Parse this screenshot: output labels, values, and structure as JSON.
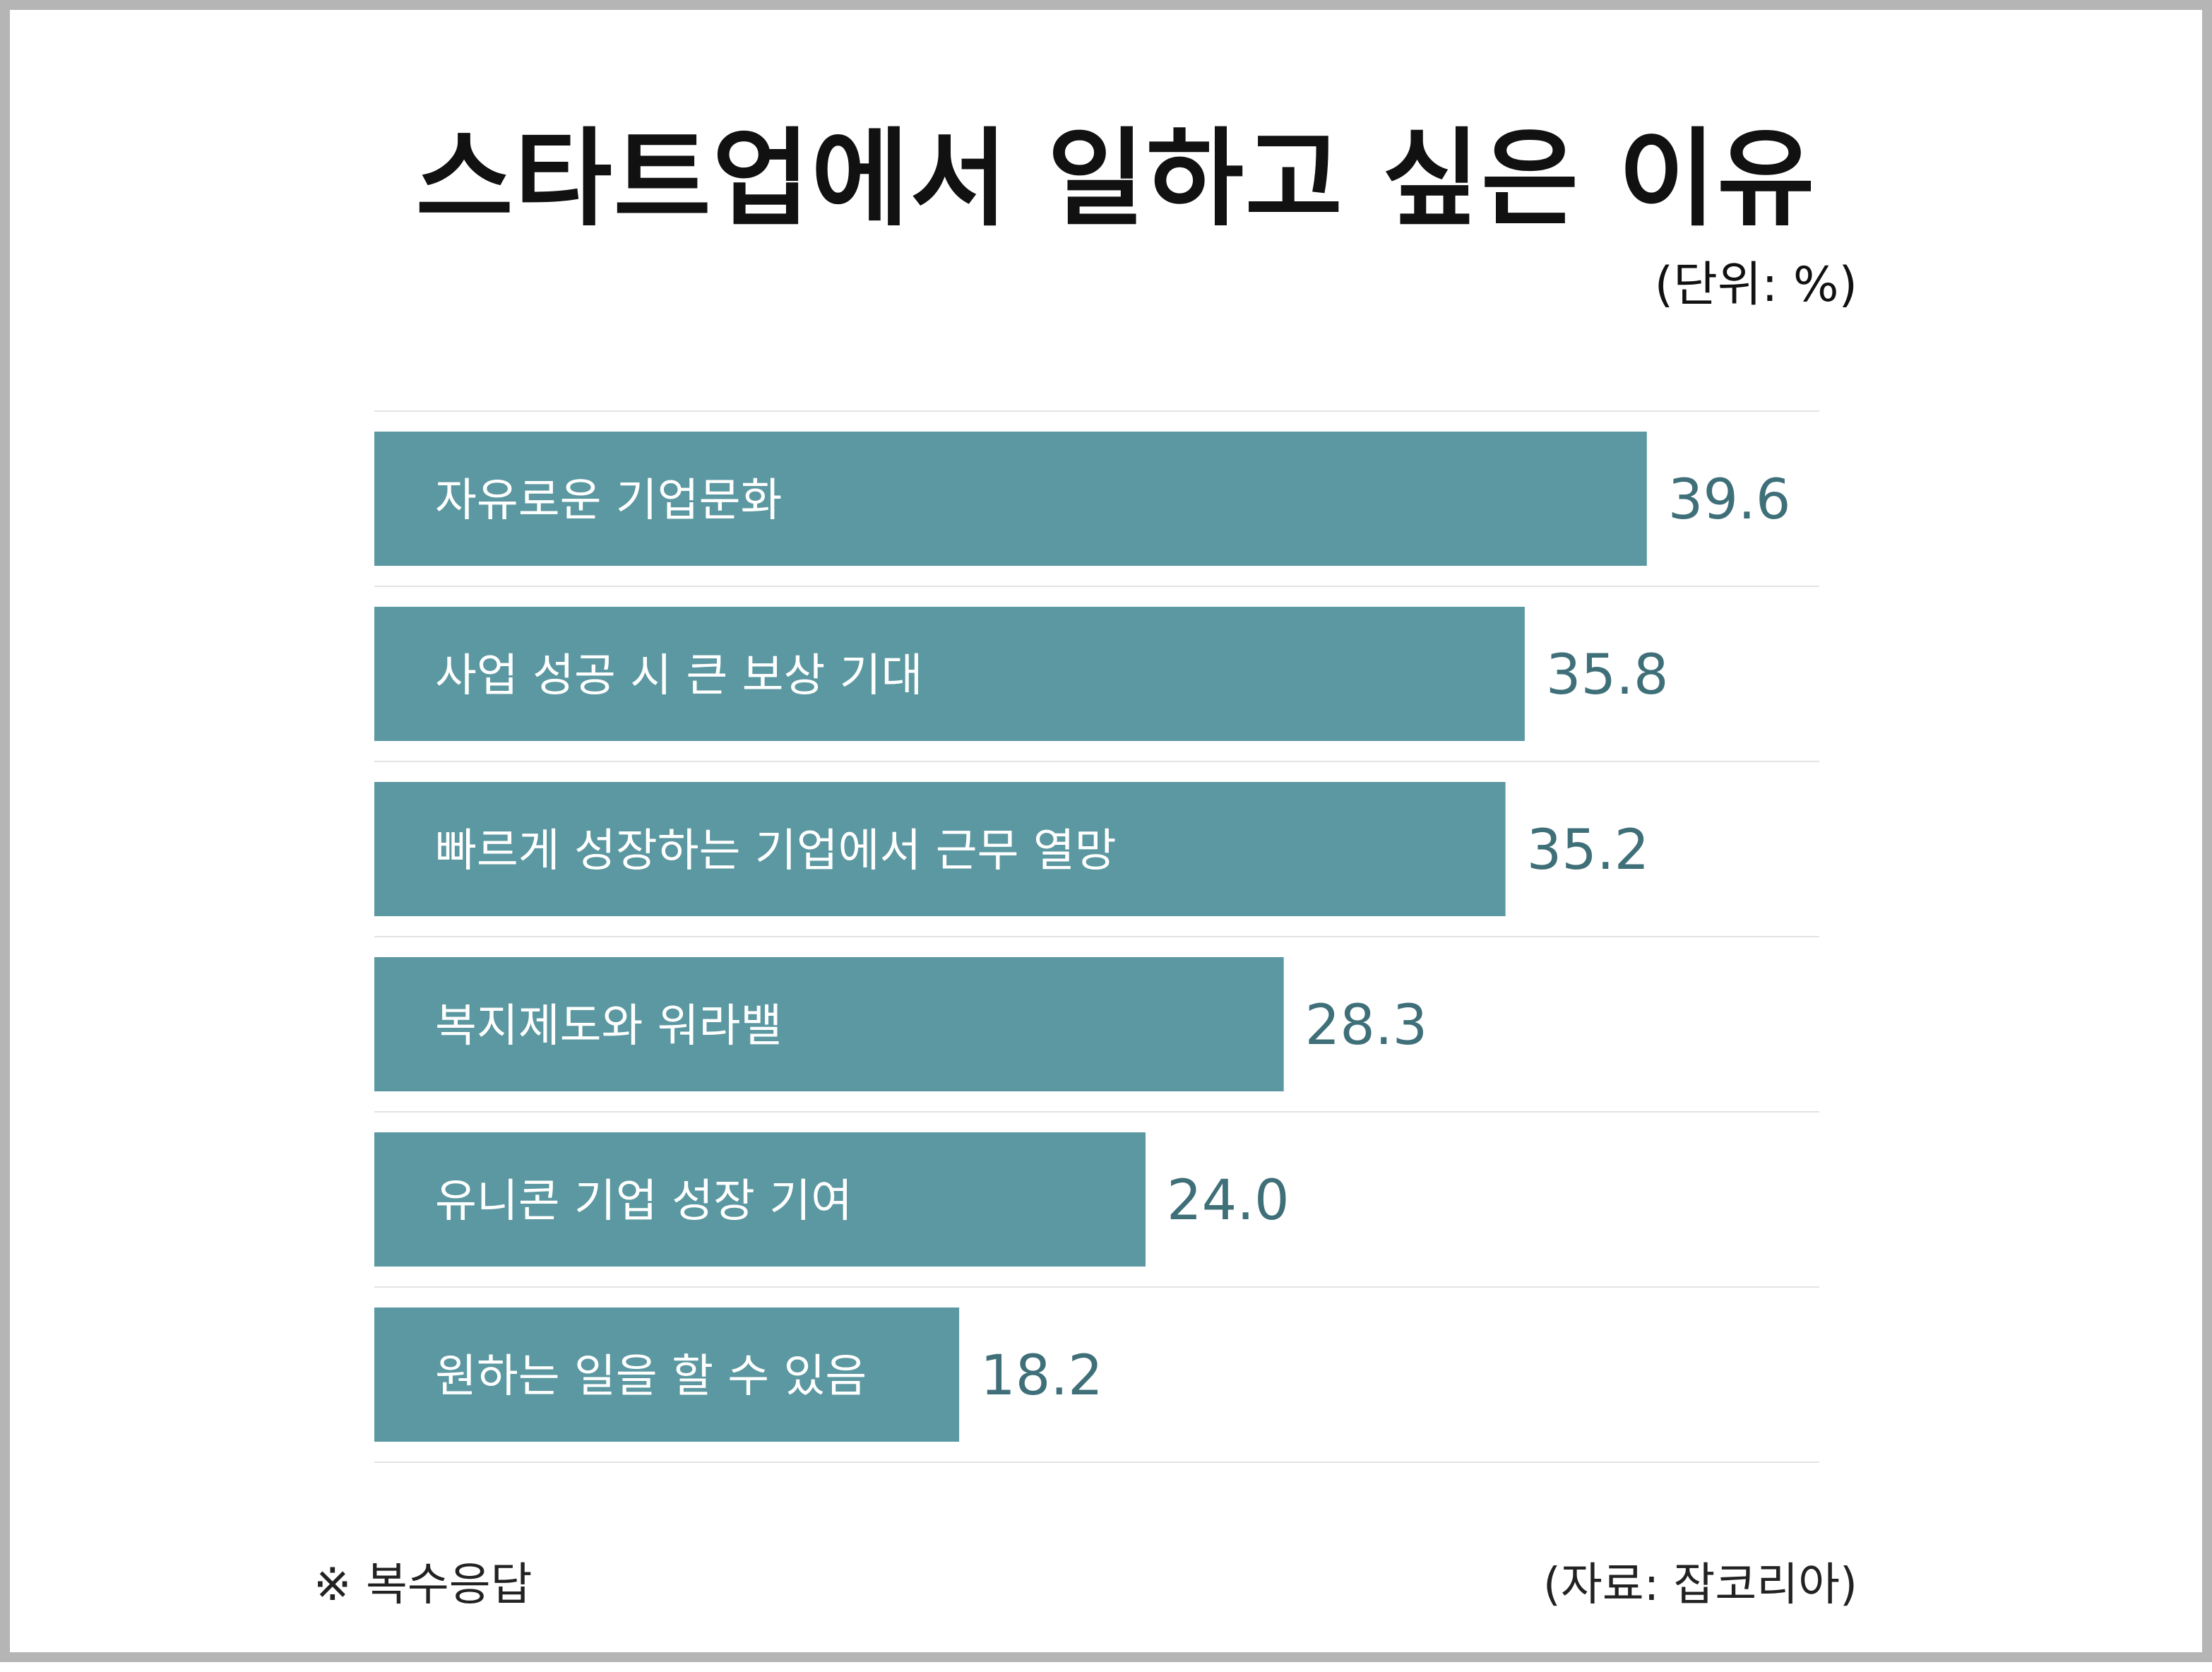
{
  "chart_data": {
    "type": "bar",
    "orientation": "horizontal",
    "title": "스타트업에서 일하고 싶은 이유",
    "unit_label": "(단위: %)",
    "categories": [
      "자유로운 기업문화",
      "사업 성공 시 큰 보상 기대",
      "빠르게 성장하는 기업에서 근무 열망",
      "복지제도와 워라밸",
      "유니콘 기업 성장 기여",
      "원하는 일을 할 수 있음"
    ],
    "values": [
      39.6,
      35.8,
      35.2,
      28.3,
      24.0,
      18.2
    ],
    "value_labels": [
      "39.6",
      "35.8",
      "35.2",
      "28.3",
      "24.0",
      "18.2"
    ],
    "bar_color": "#5b98a1",
    "value_label_color": "#3f6f78",
    "grid": false
  },
  "footnote": "※ 복수응답",
  "source": "(자료: 잡코리아)"
}
